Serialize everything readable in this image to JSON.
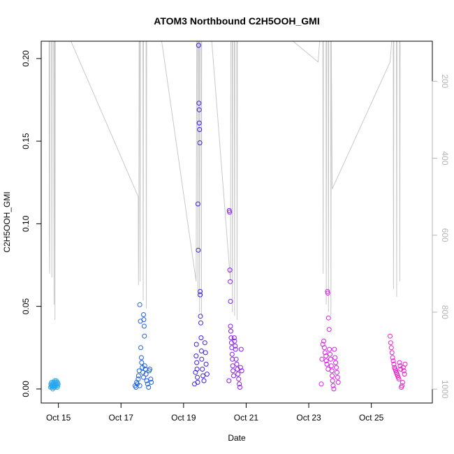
{
  "chart_data": {
    "type": "scatter",
    "title": "ATOM3 Northbound C2H5OOH_GMI",
    "xlabel": "Date",
    "ylabel": "C2H5OOH_GMI",
    "x_ticks": [
      "Oct 15",
      "Oct 17",
      "Oct 19",
      "Oct 21",
      "Oct 23",
      "Oct 25"
    ],
    "x_tick_days": [
      15,
      17,
      19,
      21,
      23,
      25
    ],
    "xlim": [
      14.45,
      26.95
    ],
    "ylim": [
      -0.0085,
      0.2105
    ],
    "y_ticks": [
      0.0,
      0.05,
      0.1,
      0.15,
      0.2
    ],
    "y_tick_labels": [
      "0.00",
      "0.05",
      "0.10",
      "0.15",
      "0.20"
    ],
    "y2_ticks": [
      200,
      400,
      600,
      800,
      1000
    ],
    "y2_tick_labels": [
      "200",
      "400",
      "600",
      "800",
      "1000"
    ],
    "y2lim": [
      1036,
      96
    ],
    "y2_reversed": true,
    "grid": false,
    "legend": "none",
    "series": [
      {
        "kind": "points",
        "flight": 1,
        "color": "#2aa6ec",
        "points": [
          [
            14.75,
            0.001
          ],
          [
            14.76,
            0.003
          ],
          [
            14.77,
            0.002
          ],
          [
            14.78,
            0.004
          ],
          [
            14.79,
            0.001
          ],
          [
            14.8,
            0.002
          ],
          [
            14.81,
            0.003
          ],
          [
            14.82,
            0.0
          ],
          [
            14.83,
            0.002
          ],
          [
            14.84,
            0.004
          ],
          [
            14.85,
            0.001
          ],
          [
            14.86,
            0.003
          ],
          [
            14.87,
            0.002
          ],
          [
            14.88,
            0.005
          ],
          [
            14.89,
            0.001
          ],
          [
            14.9,
            0.003
          ],
          [
            14.91,
            0.004
          ],
          [
            14.92,
            0.002
          ],
          [
            14.93,
            0.005
          ],
          [
            14.95,
            0.003
          ],
          [
            14.96,
            0.001
          ],
          [
            14.97,
            0.004
          ],
          [
            14.98,
            0.002
          ],
          [
            14.99,
            0.003
          ]
        ]
      },
      {
        "kind": "points",
        "flight": 2,
        "color": "#1f5fe0",
        "points": [
          [
            17.45,
            0.002
          ],
          [
            17.48,
            0.001
          ],
          [
            17.5,
            0.004
          ],
          [
            17.52,
            0.003
          ],
          [
            17.55,
            0.006
          ],
          [
            17.56,
            0.008
          ],
          [
            17.58,
            0.011
          ],
          [
            17.6,
            0.002
          ],
          [
            17.6,
            0.051
          ],
          [
            17.62,
            0.041
          ],
          [
            17.63,
            0.025
          ],
          [
            17.65,
            0.019
          ],
          [
            17.66,
            0.016
          ],
          [
            17.68,
            0.013
          ],
          [
            17.7,
            0.01
          ],
          [
            17.72,
            0.007
          ],
          [
            17.72,
            0.045
          ],
          [
            17.73,
            0.042
          ],
          [
            17.74,
            0.038
          ],
          [
            17.75,
            0.032
          ],
          [
            17.76,
            0.014
          ],
          [
            17.78,
            0.012
          ],
          [
            17.8,
            0.009
          ],
          [
            17.82,
            0.005
          ],
          [
            17.85,
            0.003
          ],
          [
            17.88,
            0.001
          ],
          [
            17.9,
            0.011
          ],
          [
            17.92,
            0.012
          ],
          [
            17.95,
            0.006
          ],
          [
            17.97,
            0.004
          ]
        ]
      },
      {
        "kind": "points",
        "flight": 3,
        "color": "#3a1ee6",
        "points": [
          [
            19.35,
            0.003
          ],
          [
            19.38,
            0.01
          ],
          [
            19.4,
            0.02
          ],
          [
            19.41,
            0.027
          ],
          [
            19.42,
            0.016
          ],
          [
            19.43,
            0.012
          ],
          [
            19.44,
            0.007
          ],
          [
            19.45,
            0.004
          ],
          [
            19.46,
            0.112
          ],
          [
            19.47,
            0.084
          ],
          [
            19.48,
            0.208
          ],
          [
            19.49,
            0.173
          ],
          [
            19.5,
            0.169
          ],
          [
            19.5,
            0.161
          ],
          [
            19.51,
            0.157
          ],
          [
            19.52,
            0.149
          ],
          [
            19.53,
            0.059
          ],
          [
            19.53,
            0.057
          ],
          [
            19.54,
            0.044
          ],
          [
            19.55,
            0.04
          ],
          [
            19.56,
            0.031
          ],
          [
            19.57,
            0.023
          ],
          [
            19.58,
            0.018
          ],
          [
            19.6,
            0.012
          ],
          [
            19.62,
            0.008
          ],
          [
            19.65,
            0.005
          ],
          [
            19.68,
            0.028
          ],
          [
            19.7,
            0.022
          ],
          [
            19.72,
            0.015
          ],
          [
            19.75,
            0.009
          ]
        ]
      },
      {
        "kind": "points",
        "flight": 4,
        "color": "#8a1ee8",
        "points": [
          [
            20.45,
            0.005
          ],
          [
            20.46,
            0.108
          ],
          [
            20.47,
            0.107
          ],
          [
            20.48,
            0.072
          ],
          [
            20.49,
            0.065
          ],
          [
            20.5,
            0.053
          ],
          [
            20.5,
            0.038
          ],
          [
            20.51,
            0.035
          ],
          [
            20.52,
            0.031
          ],
          [
            20.53,
            0.028
          ],
          [
            20.54,
            0.025
          ],
          [
            20.55,
            0.021
          ],
          [
            20.56,
            0.018
          ],
          [
            20.57,
            0.014
          ],
          [
            20.58,
            0.011
          ],
          [
            20.6,
            0.008
          ],
          [
            20.62,
            0.031
          ],
          [
            20.63,
            0.029
          ],
          [
            20.65,
            0.026
          ],
          [
            20.66,
            0.024
          ],
          [
            20.68,
            0.018
          ],
          [
            20.7,
            0.015
          ],
          [
            20.72,
            0.012
          ],
          [
            20.74,
            0.009
          ],
          [
            20.76,
            0.006
          ],
          [
            20.78,
            0.003
          ],
          [
            20.8,
            0.001
          ],
          [
            20.82,
            0.013
          ],
          [
            20.84,
            0.024
          ],
          [
            20.86,
            0.011
          ]
        ]
      },
      {
        "kind": "points",
        "flight": 5,
        "color": "#d81ee8",
        "points": [
          [
            23.4,
            0.003
          ],
          [
            23.42,
            0.018
          ],
          [
            23.45,
            0.027
          ],
          [
            23.48,
            0.029
          ],
          [
            23.5,
            0.025
          ],
          [
            23.52,
            0.022
          ],
          [
            23.55,
            0.02
          ],
          [
            23.56,
            0.017
          ],
          [
            23.58,
            0.015
          ],
          [
            23.6,
            0.059
          ],
          [
            23.61,
            0.058
          ],
          [
            23.62,
            0.012
          ],
          [
            23.63,
            0.043
          ],
          [
            23.65,
            0.036
          ],
          [
            23.66,
            0.024
          ],
          [
            23.68,
            0.021
          ],
          [
            23.7,
            0.018
          ],
          [
            23.72,
            0.014
          ],
          [
            23.74,
            0.011
          ],
          [
            23.75,
            0.008
          ],
          [
            23.76,
            0.005
          ],
          [
            23.78,
            0.002
          ],
          [
            23.8,
            0.0
          ],
          [
            23.82,
            0.024
          ],
          [
            23.84,
            0.019
          ],
          [
            23.86,
            0.016
          ],
          [
            23.88,
            0.013
          ],
          [
            23.9,
            0.01
          ],
          [
            23.92,
            0.007
          ],
          [
            23.94,
            0.004
          ]
        ]
      },
      {
        "kind": "points",
        "flight": 6,
        "color": "#ef1ecb",
        "points": [
          [
            25.6,
            0.032
          ],
          [
            25.62,
            0.028
          ],
          [
            25.64,
            0.025
          ],
          [
            25.66,
            0.022
          ],
          [
            25.68,
            0.019
          ],
          [
            25.7,
            0.017
          ],
          [
            25.72,
            0.015
          ],
          [
            25.74,
            0.013
          ],
          [
            25.76,
            0.012
          ],
          [
            25.78,
            0.011
          ],
          [
            25.8,
            0.01
          ],
          [
            25.82,
            0.009
          ],
          [
            25.84,
            0.008
          ],
          [
            25.86,
            0.007
          ],
          [
            25.88,
            0.006
          ],
          [
            25.9,
            0.016
          ],
          [
            25.92,
            0.014
          ],
          [
            25.94,
            0.012
          ],
          [
            25.96,
            0.001
          ],
          [
            25.98,
            0.002
          ],
          [
            26.0,
            0.004
          ],
          [
            26.02,
            0.013
          ],
          [
            26.04,
            0.011
          ],
          [
            26.06,
            0.009
          ],
          [
            26.08,
            0.015
          ]
        ]
      },
      {
        "kind": "pressure-line",
        "axis": "right",
        "color": "#c8c8c8",
        "points": [
          [
            14.7,
            96
          ],
          [
            14.71,
            600
          ],
          [
            14.72,
            700
          ],
          [
            14.73,
            96
          ],
          [
            14.78,
            96
          ],
          [
            14.79,
            710
          ],
          [
            14.8,
            96
          ],
          [
            14.85,
            96
          ],
          [
            14.86,
            780
          ],
          [
            14.87,
            96
          ],
          [
            14.88,
            96
          ],
          [
            14.89,
            820
          ],
          [
            14.9,
            96
          ],
          [
            15.4,
            96
          ],
          [
            17.55,
            500
          ],
          [
            17.56,
            730
          ],
          [
            17.57,
            560
          ],
          [
            17.58,
            96
          ],
          [
            17.6,
            96
          ],
          [
            17.61,
            720
          ],
          [
            17.62,
            96
          ],
          [
            17.7,
            96
          ],
          [
            17.71,
            770
          ],
          [
            17.72,
            96
          ],
          [
            17.8,
            96
          ],
          [
            17.81,
            790
          ],
          [
            17.82,
            96
          ],
          [
            18.3,
            96
          ],
          [
            19.4,
            720
          ],
          [
            19.42,
            96
          ],
          [
            19.45,
            96
          ],
          [
            19.46,
            760
          ],
          [
            19.47,
            96
          ],
          [
            19.5,
            96
          ],
          [
            19.51,
            800
          ],
          [
            19.52,
            96
          ],
          [
            19.56,
            96
          ],
          [
            19.57,
            810
          ],
          [
            19.58,
            96
          ],
          [
            19.9,
            96
          ],
          [
            20.5,
            720
          ],
          [
            20.51,
            96
          ],
          [
            20.55,
            96
          ],
          [
            20.56,
            800
          ],
          [
            20.57,
            96
          ],
          [
            20.62,
            96
          ],
          [
            20.63,
            810
          ],
          [
            20.64,
            96
          ],
          [
            20.7,
            96
          ],
          [
            20.71,
            820
          ],
          [
            20.72,
            96
          ],
          [
            22.5,
            96
          ],
          [
            23.3,
            150
          ],
          [
            23.35,
            96
          ],
          [
            23.45,
            96
          ],
          [
            23.46,
            700
          ],
          [
            23.47,
            96
          ],
          [
            23.55,
            96
          ],
          [
            23.56,
            780
          ],
          [
            23.57,
            96
          ],
          [
            23.62,
            96
          ],
          [
            23.63,
            800
          ],
          [
            23.64,
            96
          ],
          [
            23.7,
            96
          ],
          [
            23.71,
            810
          ],
          [
            23.72,
            96
          ],
          [
            23.75,
            480
          ],
          [
            25.6,
            150
          ],
          [
            25.65,
            96
          ],
          [
            25.7,
            96
          ],
          [
            25.71,
            740
          ],
          [
            25.72,
            96
          ],
          [
            25.8,
            96
          ],
          [
            25.81,
            760
          ],
          [
            25.82,
            96
          ],
          [
            25.9,
            96
          ],
          [
            25.91,
            720
          ],
          [
            25.92,
            96
          ]
        ]
      }
    ]
  }
}
